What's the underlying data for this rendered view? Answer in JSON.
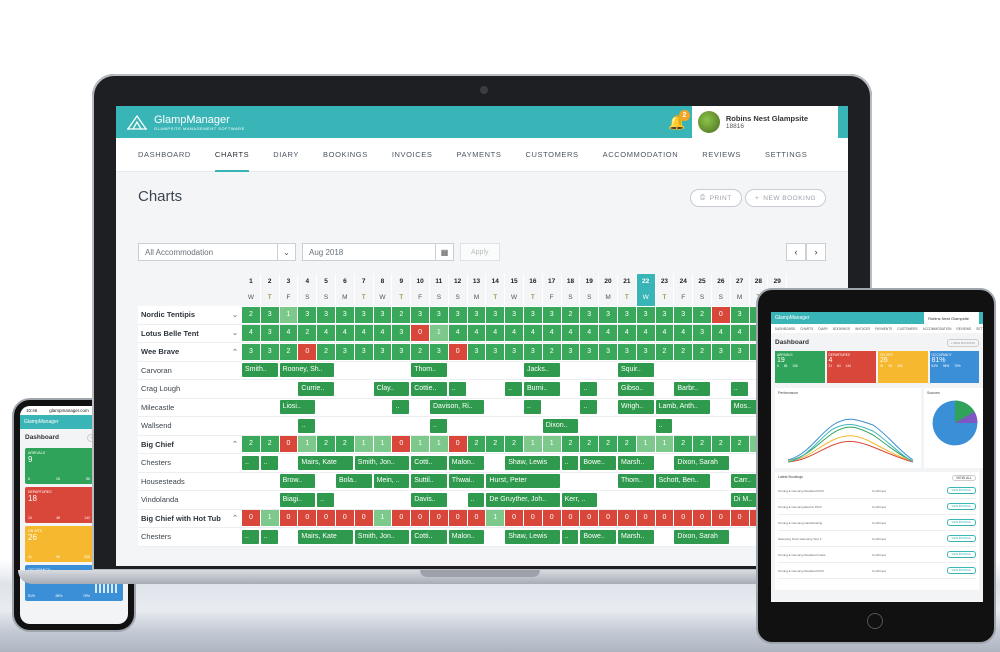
{
  "app": {
    "name": "GlampManager",
    "tagline": "GLAMPSITE MANAGEMENT SOFTWARE",
    "notifications": "2",
    "site": "Robins Nest Glampsite",
    "site_id": "18816"
  },
  "nav": [
    "DASHBOARD",
    "CHARTS",
    "DIARY",
    "BOOKINGS",
    "INVOICES",
    "PAYMENTS",
    "CUSTOMERS",
    "ACCOMMODATION",
    "REVIEWS",
    "SETTINGS"
  ],
  "active_nav": "CHARTS",
  "page_title": "Charts",
  "buttons": {
    "print": "PRINT",
    "new_booking": "NEW BOOKING",
    "apply": "Apply"
  },
  "filters": {
    "accommodation": "All Accommodation",
    "month": "Aug 2018"
  },
  "icons": {
    "prev": "chevron-left-icon",
    "next": "chevron-right-icon",
    "calendar": "calendar-icon",
    "bell": "bell-icon"
  },
  "colors": {
    "brand": "#3ab5b7",
    "available": "#3aa85a",
    "partial": "#7cc98b",
    "full": "#d9473a"
  },
  "days": [
    "1",
    "2",
    "3",
    "4",
    "5",
    "6",
    "7",
    "8",
    "9",
    "10",
    "11",
    "12",
    "13",
    "14",
    "15",
    "16",
    "17",
    "18",
    "19",
    "20",
    "21",
    "22",
    "23",
    "24",
    "25",
    "26",
    "27",
    "28",
    "29"
  ],
  "weekdays": [
    "W",
    "T",
    "F",
    "S",
    "S",
    "M",
    "T",
    "W",
    "T",
    "F",
    "S",
    "S",
    "M",
    "T",
    "W",
    "T",
    "F",
    "S",
    "S",
    "M",
    "T",
    "W",
    "T",
    "F",
    "S",
    "S",
    "M",
    "T",
    "W"
  ],
  "today_index": 21,
  "rows": [
    {
      "label": "Nordic Tentipis",
      "group": true,
      "arrow": "⌄",
      "counts": [
        "2",
        "3",
        "1",
        "3",
        "3",
        "3",
        "3",
        "3",
        "2",
        "3",
        "3",
        "3",
        "3",
        "3",
        "3",
        "3",
        "3",
        "2",
        "3",
        "3",
        "3",
        "3",
        "3",
        "3",
        "2",
        "0",
        "3",
        "3",
        "3"
      ]
    },
    {
      "label": "Lotus Belle Tent",
      "group": true,
      "arrow": "⌄",
      "counts": [
        "4",
        "3",
        "4",
        "2",
        "4",
        "4",
        "4",
        "4",
        "3",
        "0",
        "1",
        "4",
        "4",
        "4",
        "4",
        "4",
        "4",
        "4",
        "4",
        "4",
        "4",
        "4",
        "4",
        "4",
        "3",
        "4",
        "4",
        "4",
        "4"
      ]
    },
    {
      "label": "Wee Brave",
      "group": true,
      "arrow": "⌃",
      "counts": [
        "3",
        "3",
        "2",
        "0",
        "2",
        "3",
        "3",
        "3",
        "3",
        "2",
        "3",
        "0",
        "3",
        "3",
        "3",
        "3",
        "2",
        "3",
        "3",
        "3",
        "3",
        "3",
        "2",
        "2",
        "2",
        "3",
        "3",
        "3",
        "3"
      ]
    },
    {
      "label": "Carvoran",
      "bookings": [
        {
          "start": 0,
          "span": 2,
          "text": "Smith.."
        },
        {
          "start": 2,
          "span": 3,
          "text": "Rooney, Sh.."
        },
        {
          "start": 9,
          "span": 2,
          "text": "Thom.."
        },
        {
          "start": 15,
          "span": 2,
          "text": "Jacks.."
        },
        {
          "start": 20,
          "span": 2,
          "text": "Squir.."
        }
      ]
    },
    {
      "label": "Crag Lough",
      "bookings": [
        {
          "start": 3,
          "span": 2,
          "text": "Currie.."
        },
        {
          "start": 7,
          "span": 2,
          "text": "Clay.."
        },
        {
          "start": 9,
          "span": 2,
          "text": "Cottie.."
        },
        {
          "start": 11,
          "span": 1,
          "text": ".."
        },
        {
          "start": 14,
          "span": 1,
          "text": ".."
        },
        {
          "start": 15,
          "span": 2,
          "text": "Burni.."
        },
        {
          "start": 18,
          "span": 1,
          "text": ".."
        },
        {
          "start": 20,
          "span": 2,
          "text": "Gibso.."
        },
        {
          "start": 23,
          "span": 2,
          "text": "Barbr.."
        },
        {
          "start": 26,
          "span": 1,
          "text": ".."
        }
      ]
    },
    {
      "label": "Milecastle",
      "bookings": [
        {
          "start": 2,
          "span": 2,
          "text": "Liosi.."
        },
        {
          "start": 8,
          "span": 1,
          "text": ".."
        },
        {
          "start": 10,
          "span": 3,
          "text": "Davison, Ri.."
        },
        {
          "start": 15,
          "span": 1,
          "text": ".."
        },
        {
          "start": 18,
          "span": 1,
          "text": ".."
        },
        {
          "start": 20,
          "span": 2,
          "text": "Wrigh.."
        },
        {
          "start": 22,
          "span": 3,
          "text": "Lamb, Anth.."
        },
        {
          "start": 26,
          "span": 2,
          "text": "Mos.."
        }
      ]
    },
    {
      "label": "Wallsend",
      "bookings": [
        {
          "start": 3,
          "span": 1,
          "text": ".."
        },
        {
          "start": 10,
          "span": 1,
          "text": ".."
        },
        {
          "start": 16,
          "span": 2,
          "text": "Dixon.."
        },
        {
          "start": 22,
          "span": 1,
          "text": ".."
        }
      ]
    },
    {
      "label": "Big Chief",
      "group": true,
      "arrow": "⌃",
      "counts": [
        "2",
        "2",
        "0",
        "1",
        "2",
        "2",
        "1",
        "1",
        "0",
        "1",
        "1",
        "0",
        "2",
        "2",
        "2",
        "1",
        "1",
        "2",
        "2",
        "2",
        "2",
        "1",
        "1",
        "2",
        "2",
        "2",
        "2",
        "1",
        "1"
      ]
    },
    {
      "label": "Chesters",
      "bookings": [
        {
          "start": 0,
          "span": 1,
          "text": ".."
        },
        {
          "start": 1,
          "span": 1,
          "text": ".."
        },
        {
          "start": 3,
          "span": 3,
          "text": "Mairs, Kate"
        },
        {
          "start": 6,
          "span": 3,
          "text": "Smith, Jon.."
        },
        {
          "start": 9,
          "span": 2,
          "text": "Cotti.."
        },
        {
          "start": 11,
          "span": 2,
          "text": "Malon.."
        },
        {
          "start": 14,
          "span": 3,
          "text": "Shaw, Lewis"
        },
        {
          "start": 17,
          "span": 1,
          "text": ".."
        },
        {
          "start": 18,
          "span": 2,
          "text": "Bowe.."
        },
        {
          "start": 20,
          "span": 2,
          "text": "Marsh.."
        },
        {
          "start": 23,
          "span": 3,
          "text": "Dixon, Sarah"
        }
      ]
    },
    {
      "label": "Housesteads",
      "bookings": [
        {
          "start": 2,
          "span": 2,
          "text": "Brow.."
        },
        {
          "start": 5,
          "span": 2,
          "text": "Bola.."
        },
        {
          "start": 7,
          "span": 2,
          "text": "Mein, .."
        },
        {
          "start": 9,
          "span": 2,
          "text": "Suttil.."
        },
        {
          "start": 11,
          "span": 2,
          "text": "Thwai.."
        },
        {
          "start": 13,
          "span": 4,
          "text": "Hurst, Peter"
        },
        {
          "start": 20,
          "span": 2,
          "text": "Thom.."
        },
        {
          "start": 22,
          "span": 3,
          "text": "Schott, Ben.."
        },
        {
          "start": 26,
          "span": 2,
          "text": "Carr.."
        }
      ]
    },
    {
      "label": "Vindolanda",
      "bookings": [
        {
          "start": 2,
          "span": 2,
          "text": "Biagi.."
        },
        {
          "start": 4,
          "span": 1,
          "text": ".."
        },
        {
          "start": 9,
          "span": 2,
          "text": "Davis.."
        },
        {
          "start": 12,
          "span": 1,
          "text": ".."
        },
        {
          "start": 13,
          "span": 4,
          "text": "De Gruyther, Joh.."
        },
        {
          "start": 17,
          "span": 2,
          "text": "Kerr, .."
        },
        {
          "start": 26,
          "span": 2,
          "text": "Di M.."
        }
      ]
    },
    {
      "label": "Big Chief with Hot Tub",
      "group": true,
      "arrow": "⌃",
      "counts": [
        "0",
        "1",
        "0",
        "0",
        "0",
        "0",
        "0",
        "1",
        "0",
        "0",
        "0",
        "0",
        "0",
        "1",
        "0",
        "0",
        "0",
        "0",
        "0",
        "0",
        "0",
        "0",
        "0",
        "0",
        "0",
        "0",
        "0",
        "0",
        "0"
      ]
    },
    {
      "label": "Chesters",
      "bookings": [
        {
          "start": 0,
          "span": 1,
          "text": ".."
        },
        {
          "start": 1,
          "span": 1,
          "text": ".."
        },
        {
          "start": 3,
          "span": 3,
          "text": "Mairs, Kate"
        },
        {
          "start": 6,
          "span": 3,
          "text": "Smith, Jon.."
        },
        {
          "start": 9,
          "span": 2,
          "text": "Cotti.."
        },
        {
          "start": 11,
          "span": 2,
          "text": "Malon.."
        },
        {
          "start": 14,
          "span": 3,
          "text": "Shaw, Lewis"
        },
        {
          "start": 17,
          "span": 1,
          "text": ".."
        },
        {
          "start": 18,
          "span": 2,
          "text": "Bowe.."
        },
        {
          "start": 20,
          "span": 2,
          "text": "Marsh.."
        },
        {
          "start": 23,
          "span": 3,
          "text": "Dixon, Sarah"
        }
      ]
    }
  ],
  "phone": {
    "time": "10:46",
    "url": "glampmanager.com",
    "title": "Dashboard",
    "new_booking": "+ NEW BOOKING",
    "cards": [
      {
        "label": "ARRIVALS",
        "value": "9",
        "subs": [
          "6",
          "28",
          "86"
        ],
        "color": "#2fa35a"
      },
      {
        "label": "DEPARTURES",
        "value": "18",
        "subs": [
          "10",
          "48",
          "142"
        ],
        "color": "#d9473a"
      },
      {
        "label": "ON SITE",
        "value": "26",
        "subs": [
          "41",
          "96",
          "205"
        ],
        "color": "#f5b82e"
      },
      {
        "label": "OCCUPANCY",
        "value": "70%",
        "subs": [
          "51%",
          "98%",
          "75%"
        ],
        "color": "#3b8fd6"
      }
    ]
  },
  "tablet": {
    "title": "Dashboard",
    "new_booking": "+ NEW BOOKING",
    "nav": [
      "DASHBOARD",
      "CHARTS",
      "DIARY",
      "BOOKINGS",
      "INVOICES",
      "PAYMENTS",
      "CUSTOMERS",
      "ACCOMMODATION",
      "REVIEWS",
      "SETTINGS"
    ],
    "cards": [
      {
        "label": "ARRIVALS",
        "value": "19",
        "subs": [
          "6",
          "68",
          "156"
        ],
        "color": "#2fa35a"
      },
      {
        "label": "DEPARTURES",
        "value": "4",
        "subs": [
          "21",
          "84",
          "144"
        ],
        "color": "#d9473a"
      },
      {
        "label": "ON SITE",
        "value": "26",
        "subs": [
          "41",
          "96",
          "205"
        ],
        "color": "#f5b82e"
      },
      {
        "label": "OCCUPANCY",
        "value": "81%",
        "subs": [
          "51%",
          "98%",
          "75%"
        ],
        "color": "#3b8fd6"
      }
    ],
    "performance": "Performance",
    "sources": "Sources",
    "latest": "Latest Bookings",
    "view_all": "VIEW ALL",
    "cols": [
      "Date Booked",
      "Status",
      "Booking Total"
    ],
    "bookings": [
      {
        "name": "Touring & Camping Standard Pitch",
        "status": "Confirmed"
      },
      {
        "name": "Touring & Camping Electric Pitch",
        "status": "Confirmed"
      },
      {
        "name": "Touring & Camping Hardstanding",
        "status": "Confirmed"
      },
      {
        "name": "Glamping Tents Glamping Tent 4",
        "status": "Confirmed"
      },
      {
        "name": "Touring & Camping Standard Grass",
        "status": "Confirmed"
      },
      {
        "name": "Touring & Camping Standard Pitch",
        "status": "Confirmed"
      }
    ],
    "view_booking": "VIEW BOOKING"
  }
}
